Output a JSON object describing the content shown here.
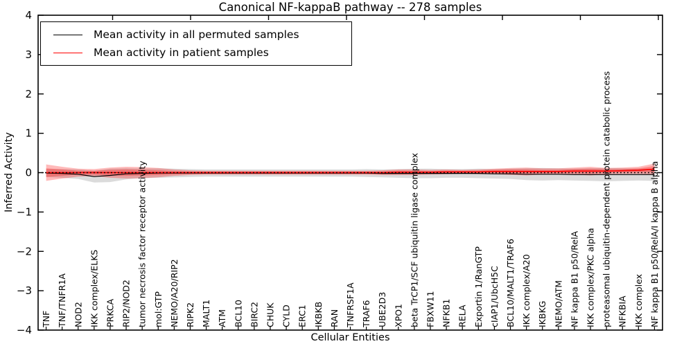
{
  "chart_data": {
    "type": "line",
    "title": "Canonical NF-kappaB pathway -- 278 samples",
    "xlabel": "Cellular Entities",
    "ylabel": "Inferred Activity",
    "ylim": [
      -4,
      4
    ],
    "ytick_labels": [
      "−4",
      "−3",
      "−2",
      "−1",
      "0",
      "1",
      "2",
      "3",
      "4"
    ],
    "grid": false,
    "legend_position": "upper left",
    "zero_line": {
      "style": "dotted",
      "color": "#000000",
      "y": 0
    },
    "categories": [
      "TNF",
      "TNF/TNFR1A",
      "NOD2",
      "IKK complex/ELKS",
      "PRKCA",
      "RIP2/NOD2",
      "tumor necrosis factor receptor activity",
      "mol:GTP",
      "NEMO/A20/RIP2",
      "RIPK2",
      "MALT1",
      "ATM",
      "BCL10",
      "BIRC2",
      "CHUK",
      "CYLD",
      "ERC1",
      "IKBKB",
      "RAN",
      "TNFRSF1A",
      "TRAF6",
      "UBE2D3",
      "XPO1",
      "beta TrCP1/SCF ubiquitin ligase complex",
      "FBXW11",
      "NFKB1",
      "RELA",
      "Exportin 1/RanGTP",
      "cIAP1/UbcH5C",
      "BCL10/MALT1/TRAF6",
      "IKK complex/A20",
      "IKBKG",
      "NEMO/ATM",
      "NF kappa B1 p50/RelA",
      "IKK complex/PKC alpha",
      "proteasomal ubiquitin-dependent protein catabolic process",
      "NFKBIA",
      "IKK complex",
      "NF kappa B1 p50/RelA/I kappa B alpha"
    ],
    "series": [
      {
        "name": "Mean activity in all permuted samples",
        "color": "#000000",
        "band_color": "#000000",
        "band_opacity": 0.14,
        "values": [
          -0.01,
          -0.02,
          -0.04,
          -0.1,
          -0.07,
          -0.03,
          -0.02,
          -0.01,
          -0.01,
          -0.01,
          -0.01,
          -0.01,
          -0.01,
          -0.01,
          -0.01,
          -0.01,
          -0.01,
          -0.01,
          -0.01,
          -0.01,
          -0.01,
          -0.02,
          -0.02,
          -0.02,
          -0.02,
          -0.02,
          -0.02,
          -0.02,
          -0.03,
          -0.03,
          -0.04,
          -0.04,
          -0.04,
          -0.05,
          -0.05,
          -0.05,
          -0.05,
          -0.05,
          -0.05
        ],
        "band_halfwidth": [
          0.1,
          0.11,
          0.12,
          0.15,
          0.17,
          0.14,
          0.12,
          0.12,
          0.11,
          0.1,
          0.09,
          0.09,
          0.09,
          0.09,
          0.09,
          0.09,
          0.09,
          0.09,
          0.09,
          0.09,
          0.1,
          0.1,
          0.11,
          0.12,
          0.12,
          0.11,
          0.11,
          0.12,
          0.12,
          0.13,
          0.15,
          0.16,
          0.15,
          0.15,
          0.16,
          0.17,
          0.16,
          0.15,
          0.16
        ]
      },
      {
        "name": "Mean activity in patient samples",
        "color": "#ff0000",
        "band_color": "#ff0000",
        "band_opacity": 0.27,
        "values": [
          0.0,
          0.0,
          0.0,
          0.0,
          0.0,
          0.0,
          0.0,
          0.0,
          0.0,
          0.0,
          0.0,
          0.0,
          0.0,
          0.0,
          0.0,
          0.0,
          0.0,
          0.0,
          0.0,
          0.0,
          0.0,
          0.0,
          0.01,
          0.01,
          0.01,
          0.02,
          0.02,
          0.02,
          0.03,
          0.03,
          0.03,
          0.03,
          0.03,
          0.04,
          0.04,
          0.04,
          0.05,
          0.06,
          0.09
        ],
        "band_halfwidth": [
          0.21,
          0.15,
          0.1,
          0.09,
          0.13,
          0.15,
          0.14,
          0.12,
          0.08,
          0.06,
          0.05,
          0.05,
          0.05,
          0.05,
          0.05,
          0.05,
          0.05,
          0.05,
          0.05,
          0.05,
          0.05,
          0.06,
          0.07,
          0.07,
          0.06,
          0.06,
          0.05,
          0.06,
          0.07,
          0.09,
          0.1,
          0.08,
          0.08,
          0.09,
          0.11,
          0.08,
          0.08,
          0.09,
          0.14
        ],
        "inner_band_halfwidth": [
          0.11,
          0.08,
          0.05,
          0.05,
          0.07,
          0.08,
          0.07,
          0.06,
          0.04,
          0.03,
          0.03,
          0.03,
          0.03,
          0.03,
          0.03,
          0.03,
          0.03,
          0.03,
          0.03,
          0.03,
          0.03,
          0.03,
          0.04,
          0.04,
          0.03,
          0.03,
          0.03,
          0.03,
          0.04,
          0.05,
          0.05,
          0.04,
          0.04,
          0.05,
          0.06,
          0.04,
          0.04,
          0.05,
          0.08
        ]
      }
    ]
  }
}
